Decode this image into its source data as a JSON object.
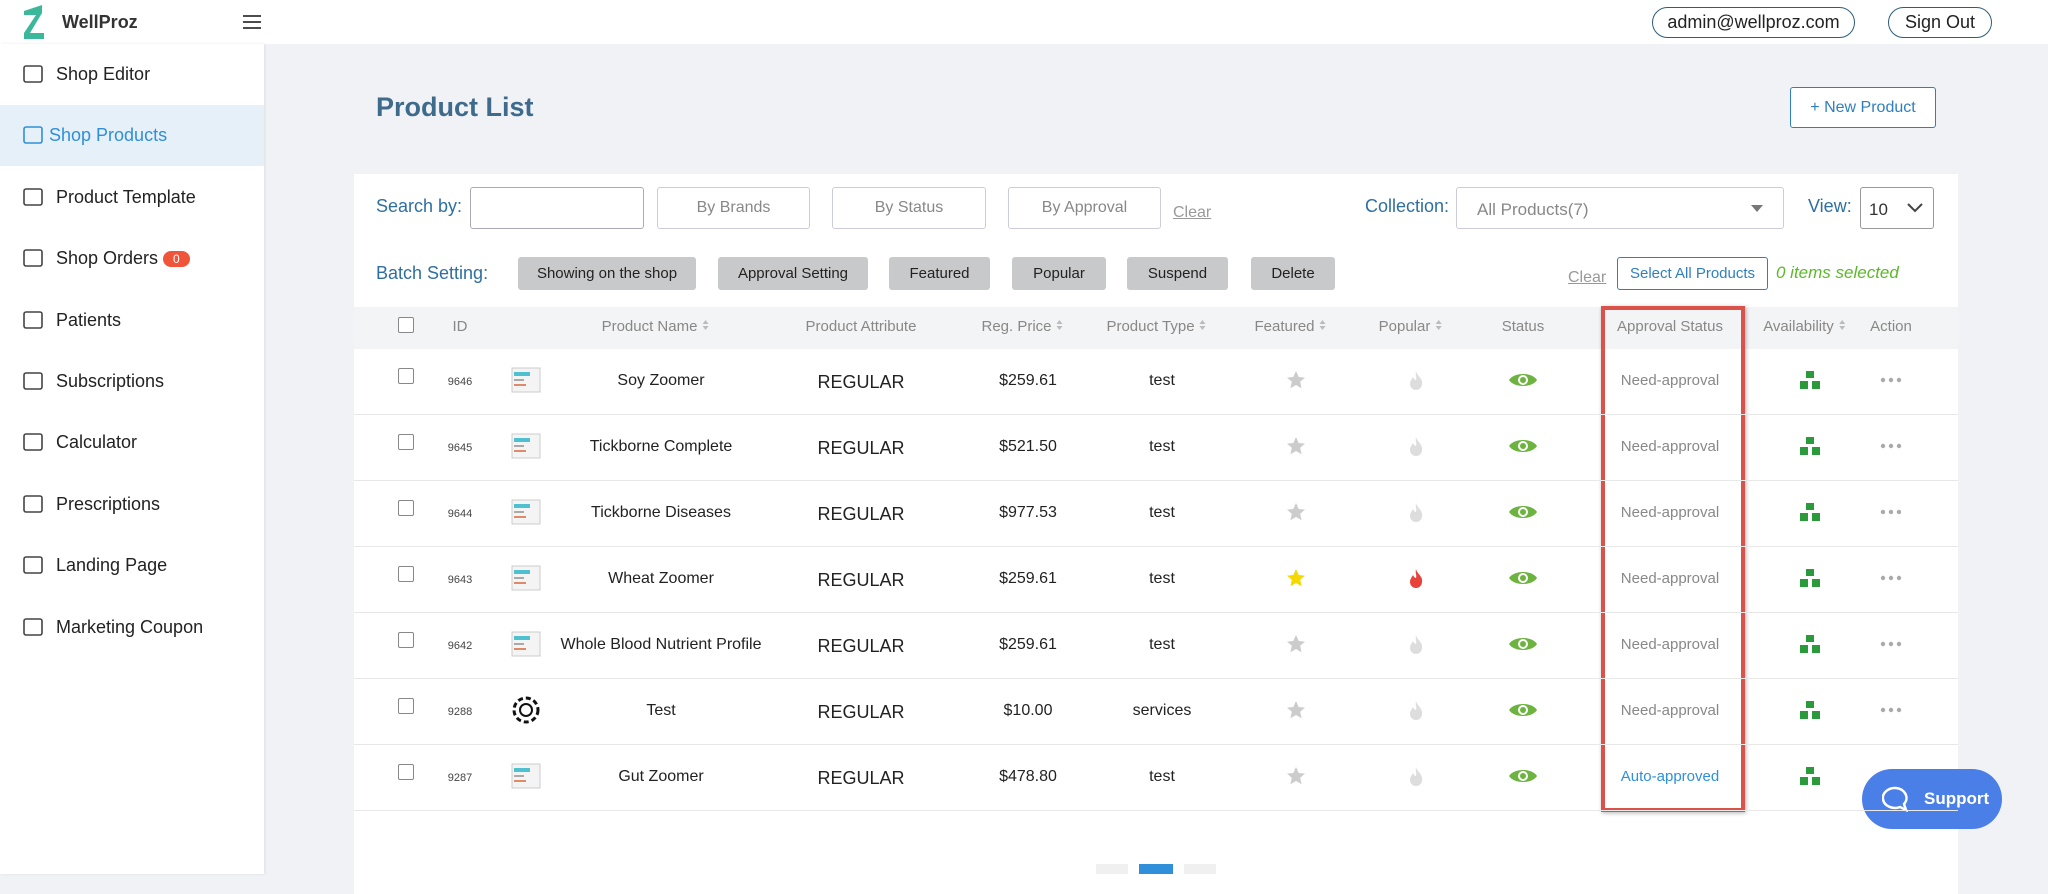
{
  "header": {
    "brand": "WellProz",
    "user": "admin@wellproz.com",
    "sign_out": "Sign Out"
  },
  "sidebar": {
    "active": 1,
    "items": [
      {
        "label": "Shop Editor"
      },
      {
        "label": "Shop Products"
      },
      {
        "label": "Product Template"
      },
      {
        "label": "Shop Orders",
        "badge": "0"
      },
      {
        "label": "Patients"
      },
      {
        "label": "Subscriptions"
      },
      {
        "label": "Calculator"
      },
      {
        "label": "Prescriptions"
      },
      {
        "label": "Landing Page"
      },
      {
        "label": "Marketing Coupon"
      }
    ]
  },
  "page": {
    "title": "Product List",
    "new_button": "+ New Product"
  },
  "filters": {
    "search_label": "Search by:",
    "brands": "By Brands",
    "status": "By Status",
    "approval": "By Approval",
    "clear": "Clear",
    "collection_label": "Collection:",
    "collection_value": "All Products(7)",
    "view_label": "View:",
    "view_value": "10"
  },
  "batch": {
    "label": "Batch Setting:",
    "buttons": [
      "Showing on the shop",
      "Approval Setting",
      "Featured",
      "Popular",
      "Suspend",
      "Delete"
    ],
    "clear": "Clear",
    "select_all": "Select All Products",
    "selected": "0 items selected"
  },
  "table": {
    "columns": [
      "ID",
      "Product Name",
      "Product Attribute",
      "Reg. Price",
      "Product Type",
      "Featured",
      "Popular",
      "Status",
      "Approval Status",
      "Availability",
      "Action"
    ],
    "rows": [
      {
        "id": "9646",
        "name": "Soy Zoomer",
        "attribute": "REGULAR",
        "price": "$259.61",
        "type": "test",
        "approval": "Need-approval",
        "featured": false,
        "popular": false,
        "icon": "box"
      },
      {
        "id": "9645",
        "name": "Tickborne Complete",
        "attribute": "REGULAR",
        "price": "$521.50",
        "type": "test",
        "approval": "Need-approval",
        "featured": false,
        "popular": false,
        "icon": "box"
      },
      {
        "id": "9644",
        "name": "Tickborne Diseases",
        "attribute": "REGULAR",
        "price": "$977.53",
        "type": "test",
        "approval": "Need-approval",
        "featured": false,
        "popular": false,
        "icon": "box"
      },
      {
        "id": "9643",
        "name": "Wheat Zoomer",
        "attribute": "REGULAR",
        "price": "$259.61",
        "type": "test",
        "approval": "Need-approval",
        "featured": true,
        "popular": true,
        "icon": "box"
      },
      {
        "id": "9642",
        "name": "Whole Blood Nutrient Profile",
        "attribute": "REGULAR",
        "price": "$259.61",
        "type": "test",
        "approval": "Need-approval",
        "featured": false,
        "popular": false,
        "icon": "box"
      },
      {
        "id": "9288",
        "name": "Test",
        "attribute": "REGULAR",
        "price": "$10.00",
        "type": "services",
        "approval": "Need-approval",
        "featured": false,
        "popular": false,
        "icon": "gear"
      },
      {
        "id": "9287",
        "name": "Gut Zoomer",
        "attribute": "REGULAR",
        "price": "$478.80",
        "type": "test",
        "approval": "Auto-approved",
        "featured": false,
        "popular": false,
        "icon": "box"
      }
    ]
  },
  "support": "Support"
}
